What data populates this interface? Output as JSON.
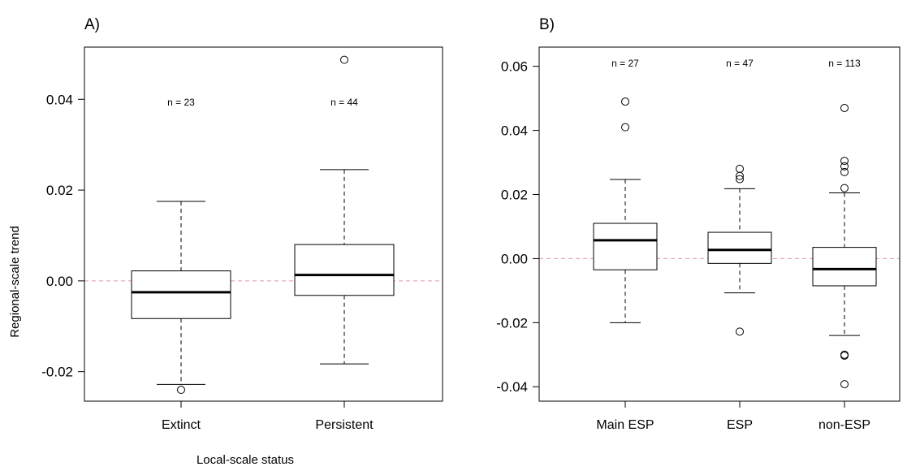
{
  "xlabel": "Local-scale status",
  "ylabel": "Regional-scale trend",
  "chart_data": [
    {
      "type": "box",
      "panel_label": "A)",
      "xlabel": "Local-scale status",
      "ylabel": "Regional-scale trend",
      "ylim": [
        -0.0265,
        0.0515
      ],
      "yticks": [
        -0.02,
        0.0,
        0.02,
        0.04
      ],
      "ytick_labels": [
        "-0.02",
        "0.00",
        "0.02",
        "0.04"
      ],
      "reference_line": 0.0,
      "categories": [
        "Extinct",
        "Persistent"
      ],
      "boxes": [
        {
          "category": "Extinct",
          "n_label": "n = 23",
          "whisker_low": -0.0228,
          "q1": -0.0083,
          "median": -0.0025,
          "q3": 0.0022,
          "whisker_high": 0.0175,
          "outliers": [
            -0.024
          ]
        },
        {
          "category": "Persistent",
          "n_label": "n = 44",
          "whisker_low": -0.0183,
          "q1": -0.0032,
          "median": 0.0013,
          "q3": 0.008,
          "whisker_high": 0.0245,
          "outliers": [
            0.0487
          ]
        }
      ]
    },
    {
      "type": "box",
      "panel_label": "B)",
      "xlabel": "",
      "ylabel": "",
      "ylim": [
        -0.0445,
        0.066
      ],
      "yticks": [
        -0.04,
        -0.02,
        0.0,
        0.02,
        0.04,
        0.06
      ],
      "ytick_labels": [
        "-0.04",
        "-0.02",
        "0.00",
        "0.02",
        "0.04",
        "0.06"
      ],
      "reference_line": 0.0,
      "categories": [
        "Main ESP",
        "ESP",
        "non-ESP"
      ],
      "boxes": [
        {
          "category": "Main ESP",
          "n_label": "n = 27",
          "whisker_low": -0.02,
          "q1": -0.0035,
          "median": 0.0057,
          "q3": 0.011,
          "whisker_high": 0.0247,
          "outliers": [
            0.049,
            0.041
          ]
        },
        {
          "category": "ESP",
          "n_label": "n = 47",
          "whisker_low": -0.0107,
          "q1": -0.0015,
          "median": 0.0027,
          "q3": 0.0082,
          "whisker_high": 0.0218,
          "outliers": [
            0.028,
            0.0258,
            0.0248,
            -0.0228
          ]
        },
        {
          "category": "non-ESP",
          "n_label": "n = 113",
          "whisker_low": -0.024,
          "q1": -0.0085,
          "median": -0.0033,
          "q3": 0.0035,
          "whisker_high": 0.0205,
          "outliers": [
            0.047,
            0.0305,
            0.0288,
            0.027,
            0.022,
            -0.03,
            -0.0303,
            -0.0392
          ]
        }
      ]
    }
  ]
}
